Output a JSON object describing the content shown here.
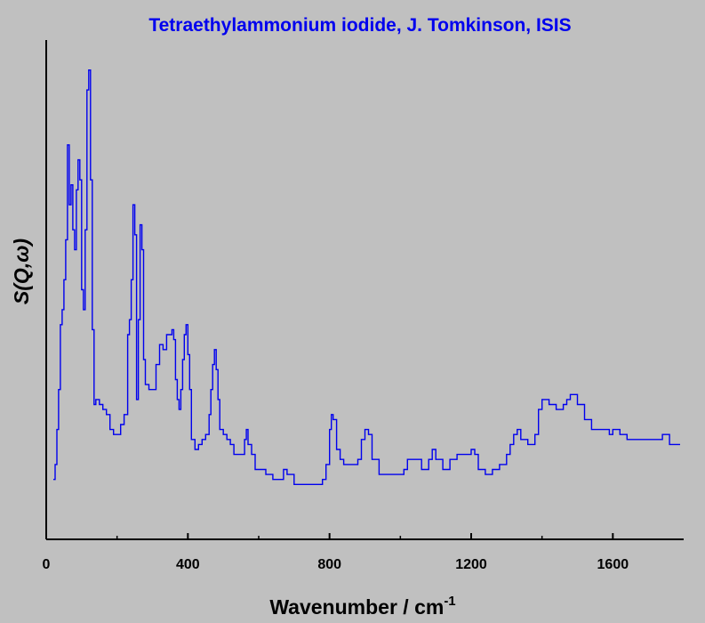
{
  "chart_data": {
    "type": "line",
    "title": "Tetraethylammonium iodide, J. Tomkinson, ISIS",
    "xlabel": "Wavenumber / cm",
    "xlabel_superscript": "-1",
    "ylabel": "S(Q,ω)",
    "xlim": [
      0,
      1800
    ],
    "ylim": [
      0,
      100
    ],
    "x_ticks": [
      0,
      400,
      800,
      1200,
      1600
    ],
    "x_tick_labels": [
      "0",
      "400",
      "800",
      "1200",
      "1600"
    ],
    "y_tick_labels_shown": false,
    "grid": false,
    "line_style": "step",
    "colors": {
      "title": "#0000ee",
      "line": "#0000ee",
      "axes": "#000000",
      "background": "#c0c0c0"
    },
    "series": [
      {
        "x": [
          20,
          25,
          30,
          35,
          40,
          45,
          50,
          55,
          60,
          65,
          70,
          75,
          80,
          85,
          90,
          95,
          100,
          105,
          110,
          115,
          120,
          125,
          130,
          135,
          140,
          150,
          160,
          170,
          180,
          190,
          200,
          210,
          220,
          230,
          235,
          240,
          245,
          250,
          255,
          260,
          265,
          270,
          275,
          280,
          290,
          300,
          310,
          320,
          330,
          340,
          350,
          355,
          360,
          365,
          370,
          375,
          380,
          385,
          390,
          395,
          400,
          405,
          410,
          420,
          430,
          440,
          450,
          460,
          465,
          470,
          475,
          480,
          485,
          490,
          500,
          510,
          520,
          530,
          540,
          550,
          560,
          565,
          570,
          580,
          590,
          600,
          620,
          640,
          660,
          670,
          680,
          700,
          720,
          740,
          760,
          780,
          790,
          800,
          805,
          810,
          820,
          830,
          840,
          860,
          880,
          890,
          900,
          910,
          920,
          940,
          960,
          980,
          1000,
          1010,
          1020,
          1040,
          1060,
          1070,
          1080,
          1090,
          1100,
          1120,
          1140,
          1160,
          1180,
          1200,
          1210,
          1220,
          1240,
          1260,
          1280,
          1300,
          1310,
          1320,
          1330,
          1340,
          1360,
          1380,
          1390,
          1400,
          1420,
          1440,
          1460,
          1470,
          1480,
          1490,
          1500,
          1520,
          1540,
          1560,
          1580,
          1590,
          1600,
          1620,
          1640,
          1660,
          1680,
          1700,
          1720,
          1730,
          1740,
          1760,
          1780,
          1790
        ],
        "y": [
          12,
          15,
          22,
          30,
          43,
          46,
          52,
          60,
          79,
          67,
          71,
          62,
          58,
          70,
          76,
          72,
          50,
          46,
          62,
          90,
          94,
          72,
          42,
          27,
          28,
          27,
          26,
          25,
          22,
          21,
          21,
          23,
          25,
          41,
          44,
          52,
          67,
          61,
          28,
          44,
          63,
          58,
          36,
          31,
          30,
          30,
          35,
          39,
          38,
          41,
          41,
          42,
          40,
          32,
          28,
          26,
          30,
          36,
          41,
          43,
          37,
          30,
          20,
          18,
          19,
          20,
          21,
          25,
          30,
          35,
          38,
          34,
          28,
          22,
          21,
          20,
          19,
          17,
          17,
          17,
          20,
          22,
          19,
          17,
          14,
          14,
          13,
          12,
          12,
          14,
          13,
          11,
          11,
          11,
          11,
          12,
          15,
          22,
          25,
          24,
          18,
          16,
          15,
          15,
          16,
          20,
          22,
          21,
          16,
          13,
          13,
          13,
          13,
          14,
          16,
          16,
          14,
          14,
          16,
          18,
          16,
          14,
          16,
          17,
          17,
          18,
          17,
          14,
          13,
          14,
          15,
          17,
          19,
          21,
          22,
          20,
          19,
          21,
          26,
          28,
          27,
          26,
          27,
          28,
          29,
          29,
          27,
          24,
          22,
          22,
          22,
          21,
          22,
          21,
          20,
          20,
          20,
          20,
          20,
          20,
          21,
          19,
          19,
          19
        ]
      }
    ]
  }
}
